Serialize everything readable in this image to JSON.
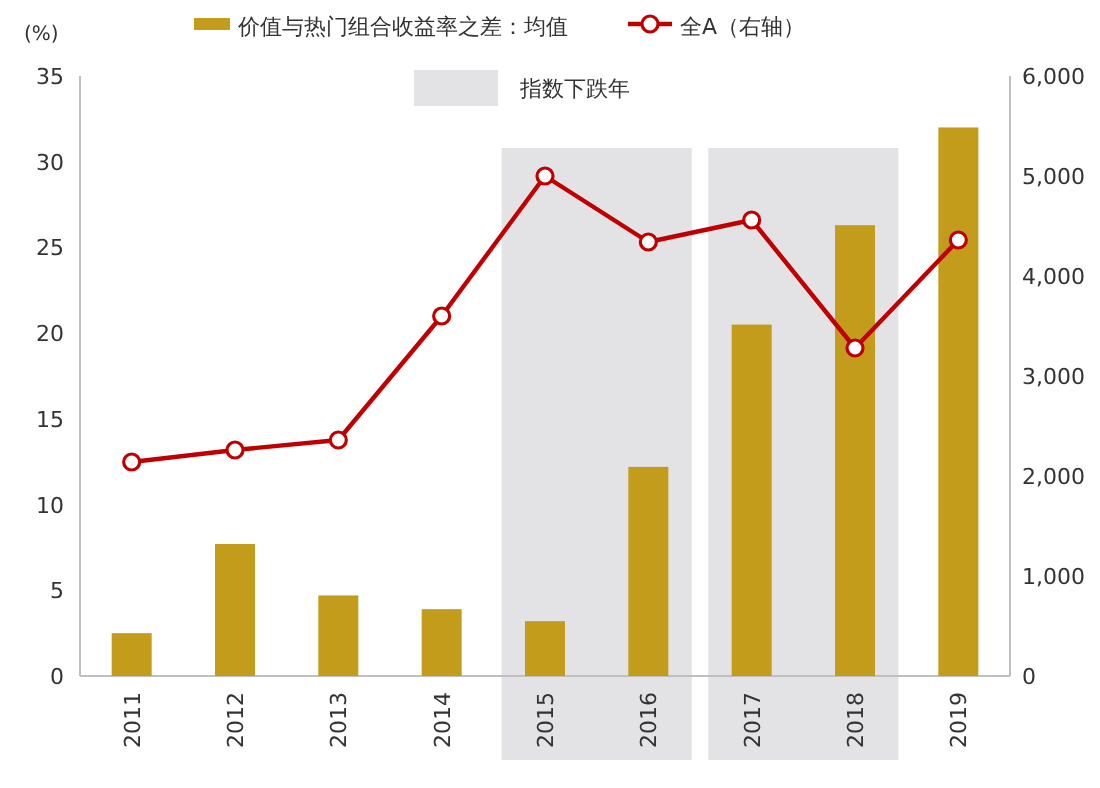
{
  "chart_data": {
    "type": "bar",
    "ylabel": "(%)",
    "categories": [
      "2011",
      "2012",
      "2013",
      "2014",
      "2015",
      "2016",
      "2017",
      "2018",
      "2019"
    ],
    "series": [
      {
        "name": "价值与热门组合收益率之差：均值",
        "color": "#c49c1c",
        "values": [
          2.5,
          7.7,
          4.7,
          3.9,
          3.2,
          12.2,
          20.5,
          26.3,
          32
        ]
      },
      {
        "name": "全A（右轴）",
        "type": "line",
        "axis": "y2",
        "color": "#c00000",
        "marker": "circle",
        "values": [
          2140,
          2260,
          2360,
          3600,
          5000,
          4340,
          4560,
          3280,
          4360
        ]
      }
    ],
    "ylim": [
      0,
      35
    ],
    "yticks": [
      0,
      5,
      10,
      15,
      20,
      25,
      30,
      35
    ],
    "y2lim": [
      0,
      6000
    ],
    "y2ticks": [
      0,
      {
        "value": 1000,
        "label": "1,000"
      },
      {
        "value": 2000,
        "label": "2,000"
      },
      {
        "value": 3000,
        "label": "3,000"
      },
      {
        "value": 4000,
        "label": "4,000"
      },
      {
        "value": 5000,
        "label": "5,000"
      },
      {
        "value": 6000,
        "label": "6,000"
      }
    ],
    "bands": [
      {
        "axis": "x",
        "from": "2015",
        "to": "2016",
        "label": "指数下跌年",
        "color": "#e3e3e5"
      },
      {
        "axis": "x",
        "from": "2017",
        "to": "2018",
        "color": "#e3e3e5"
      }
    ],
    "grid": false,
    "legend": "top"
  }
}
